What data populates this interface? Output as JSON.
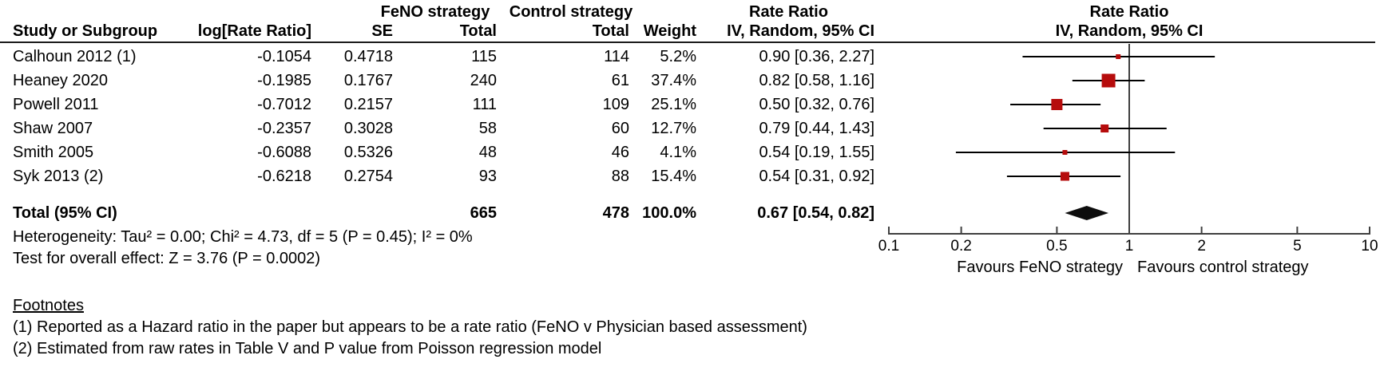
{
  "table": {
    "header_row1": {
      "feno_strategy": "FeNO strategy",
      "control_strategy": "Control strategy",
      "rate_ratio": "Rate Ratio"
    },
    "header_row2": {
      "study": "Study or Subgroup",
      "log_rate_ratio": "log[Rate Ratio]",
      "se": "SE",
      "feno_total": "Total",
      "control_total": "Total",
      "weight": "Weight",
      "ci_method": "IV, Random, 95% CI"
    },
    "rows": [
      [
        "Calhoun 2012 (1)",
        "-0.1054",
        "0.4718",
        "115",
        "114",
        "5.2%",
        "0.90 [0.36, 2.27]"
      ],
      [
        "Heaney 2020",
        "-0.1985",
        "0.1767",
        "240",
        "61",
        "37.4%",
        "0.82 [0.58, 1.16]"
      ],
      [
        "Powell 2011",
        "-0.7012",
        "0.2157",
        "111",
        "109",
        "25.1%",
        "0.50 [0.32, 0.76]"
      ],
      [
        "Shaw 2007",
        "-0.2357",
        "0.3028",
        "58",
        "60",
        "12.7%",
        "0.79 [0.44, 1.43]"
      ],
      [
        "Smith 2005",
        "-0.6088",
        "0.5326",
        "48",
        "46",
        "4.1%",
        "0.54 [0.19, 1.55]"
      ],
      [
        "Syk 2013 (2)",
        "-0.6218",
        "0.2754",
        "93",
        "88",
        "15.4%",
        "0.54 [0.31, 0.92]"
      ]
    ],
    "total_row": [
      "Total (95% CI)",
      "",
      "",
      "665",
      "478",
      "100.0%",
      "0.67 [0.54, 0.82]"
    ]
  },
  "plot_header": {
    "line1": "Rate Ratio",
    "line2": "IV, Random, 95% CI"
  },
  "stats": {
    "heterogeneity": "Heterogeneity: Tau² = 0.00; Chi² = 4.73, df = 5 (P = 0.45); I² = 0%",
    "overall_effect": "Test for overall effect: Z = 3.76 (P = 0.0002)"
  },
  "footnotes": {
    "heading": "Footnotes",
    "items": [
      "(1) Reported as a Hazard ratio in the paper but appears to be a rate ratio (FeNO v Physician based assessment)",
      "(2) Estimated from raw rates in Table V and P value from Poisson regression model"
    ]
  },
  "colors": {
    "marker_red": "#b60c0c",
    "ci_line": "#000000",
    "axis_line": "#3f3f3f",
    "diamond": "#0d0d0d",
    "text": "#000000",
    "rule": "#1a1a1a"
  },
  "chart_data": {
    "type": "scatter",
    "subtype": "forest-plot",
    "title": "Rate Ratio — IV, Random, 95% CI",
    "x_scale": "log10",
    "xlim": [
      0.1,
      10
    ],
    "null_line": 1,
    "x_ticks": [
      0.1,
      0.2,
      0.5,
      1,
      2,
      5,
      10
    ],
    "x_tick_labels": [
      "0.1",
      "0.2",
      "0.5",
      "1",
      "2",
      "5",
      "10"
    ],
    "favours_left": "Favours FeNO strategy",
    "favours_right": "Favours control strategy",
    "studies": [
      {
        "label": "Calhoun 2012 (1)",
        "rr": 0.9,
        "ci_low": 0.36,
        "ci_high": 2.27,
        "weight_pct": 5.2
      },
      {
        "label": "Heaney 2020",
        "rr": 0.82,
        "ci_low": 0.58,
        "ci_high": 1.16,
        "weight_pct": 37.4
      },
      {
        "label": "Powell 2011",
        "rr": 0.5,
        "ci_low": 0.32,
        "ci_high": 0.76,
        "weight_pct": 25.1
      },
      {
        "label": "Shaw 2007",
        "rr": 0.79,
        "ci_low": 0.44,
        "ci_high": 1.43,
        "weight_pct": 12.7
      },
      {
        "label": "Smith 2005",
        "rr": 0.54,
        "ci_low": 0.19,
        "ci_high": 1.55,
        "weight_pct": 4.1
      },
      {
        "label": "Syk 2013 (2)",
        "rr": 0.54,
        "ci_low": 0.31,
        "ci_high": 0.92,
        "weight_pct": 15.4
      }
    ],
    "total": {
      "label": "Total (95% CI)",
      "rr": 0.67,
      "ci_low": 0.54,
      "ci_high": 0.82,
      "weight_pct": 100.0
    }
  }
}
